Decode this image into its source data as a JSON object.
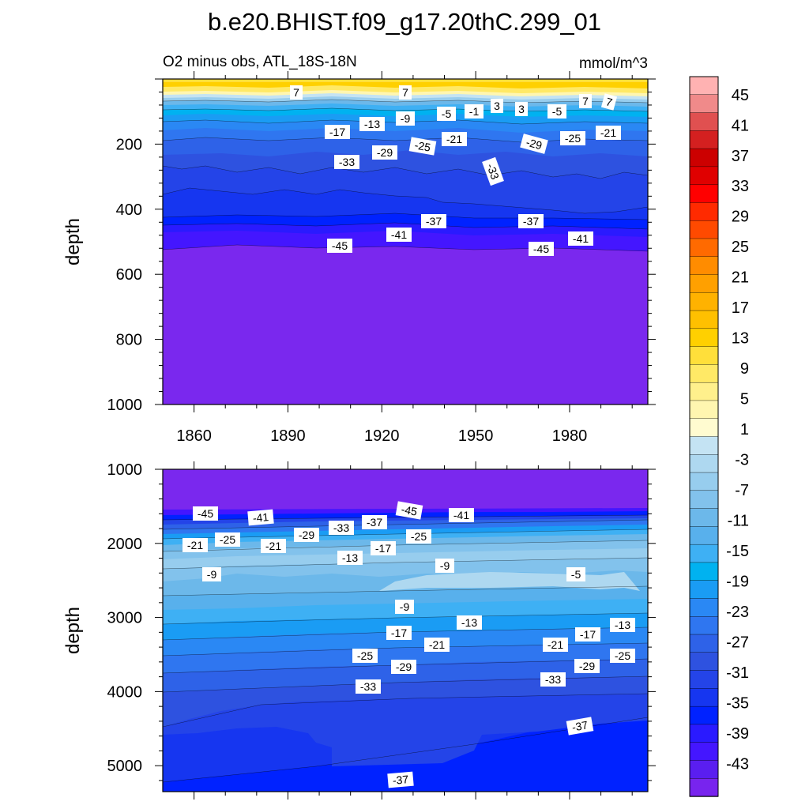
{
  "chart_data": {
    "type": "contour",
    "title": "b.e20.BHIST.f09_g17.20thC.299_01",
    "subtitle_left": "O2 minus obs, ATL_18S-18N",
    "units": "mmol/m^3",
    "colorbar": {
      "labels": [
        "45",
        "41",
        "37",
        "33",
        "29",
        "25",
        "21",
        "17",
        "13",
        "9",
        "5",
        "1",
        "-3",
        "-7",
        "-11",
        "-15",
        "-19",
        "-23",
        "-27",
        "-31",
        "-35",
        "-39",
        "-43"
      ],
      "colors": [
        "#ffb2b2",
        "#f08a8a",
        "#e05050",
        "#d42020",
        "#cc0000",
        "#e00000",
        "#ff0000",
        "#ff2a00",
        "#ff4a00",
        "#ff6a00",
        "#ff8c00",
        "#ffa000",
        "#ffb200",
        "#ffc000",
        "#ffd000",
        "#ffdf3a",
        "#ffe966",
        "#fff08c",
        "#fff6b0",
        "#fffbd0",
        "#c4e3f3",
        "#aed8f0",
        "#97cdee",
        "#82c2ec",
        "#6cb8ea",
        "#58b0ec",
        "#3eb0f4",
        "#00b2f0",
        "#1a9cf4",
        "#2a88f4",
        "#2f76f0",
        "#2e62e8",
        "#2e52e0",
        "#2444e8",
        "#1636f0",
        "#0022ff",
        "#2a1aff",
        "#4416ff",
        "#5a1ef0",
        "#7824ee"
      ]
    },
    "x_ticks": [
      "1860",
      "1890",
      "1920",
      "1950",
      "1980"
    ],
    "panels": [
      {
        "name": "upper",
        "ylabel": "depth",
        "y_range": [
          0,
          1000
        ],
        "y_ticks": [
          "200",
          "400",
          "600",
          "800",
          "1000"
        ],
        "contour_labels": [
          "7",
          "7",
          "7",
          "7",
          "-5",
          "-1",
          "3",
          "3",
          "-5",
          "-9",
          "-13",
          "-17",
          "-21",
          "-25",
          "-29",
          "-25",
          "-21",
          "-29",
          "-33",
          "-33",
          "-37",
          "-37",
          "-41",
          "-41",
          "-45",
          "-45"
        ]
      },
      {
        "name": "lower",
        "ylabel": "depth",
        "y_range": [
          1000,
          5350
        ],
        "y_ticks": [
          "1000",
          "2000",
          "3000",
          "4000",
          "5000"
        ],
        "contour_labels": [
          "-45",
          "-41",
          "-45",
          "-41",
          "-21",
          "-25",
          "-21",
          "-29",
          "-33",
          "-37",
          "-25",
          "-17",
          "-13",
          "-9",
          "-9",
          "-5",
          "-9",
          "-13",
          "-17",
          "-21",
          "-17",
          "-13",
          "-21",
          "-25",
          "-25",
          "-29",
          "-29",
          "-33",
          "-33",
          "-37",
          "-37"
        ]
      }
    ]
  }
}
